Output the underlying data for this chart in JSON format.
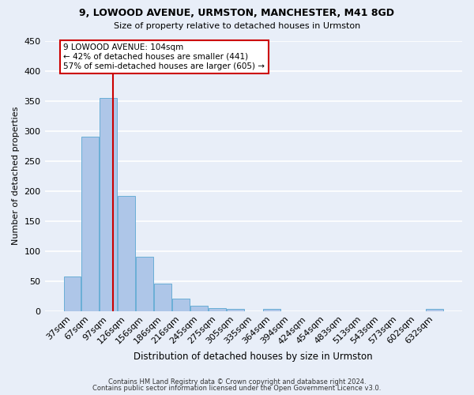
{
  "title1": "9, LOWOOD AVENUE, URMSTON, MANCHESTER, M41 8GD",
  "title2": "Size of property relative to detached houses in Urmston",
  "xlabel": "Distribution of detached houses by size in Urmston",
  "ylabel": "Number of detached properties",
  "bar_labels": [
    "37sqm",
    "67sqm",
    "97sqm",
    "126sqm",
    "156sqm",
    "186sqm",
    "216sqm",
    "245sqm",
    "275sqm",
    "305sqm",
    "335sqm",
    "364sqm",
    "394sqm",
    "424sqm",
    "454sqm",
    "483sqm",
    "513sqm",
    "543sqm",
    "573sqm",
    "602sqm",
    "632sqm"
  ],
  "bar_values": [
    57,
    290,
    355,
    191,
    90,
    46,
    21,
    9,
    5,
    4,
    0,
    3,
    0,
    0,
    0,
    0,
    0,
    0,
    0,
    0,
    4
  ],
  "bar_color": "#aec6e8",
  "bar_edge_color": "#6aaed6",
  "ylim": [
    0,
    450
  ],
  "yticks": [
    0,
    50,
    100,
    150,
    200,
    250,
    300,
    350,
    400,
    450
  ],
  "property_line_color": "#cc0000",
  "annotation_title": "9 LOWOOD AVENUE: 104sqm",
  "annotation_line1": "← 42% of detached houses are smaller (441)",
  "annotation_line2": "57% of semi-detached houses are larger (605) →",
  "annotation_box_color": "#ffffff",
  "annotation_box_edge": "#cc0000",
  "footer1": "Contains HM Land Registry data © Crown copyright and database right 2024.",
  "footer2": "Contains public sector information licensed under the Open Government Licence v3.0.",
  "background_color": "#e8eef8",
  "grid_color": "#ffffff"
}
